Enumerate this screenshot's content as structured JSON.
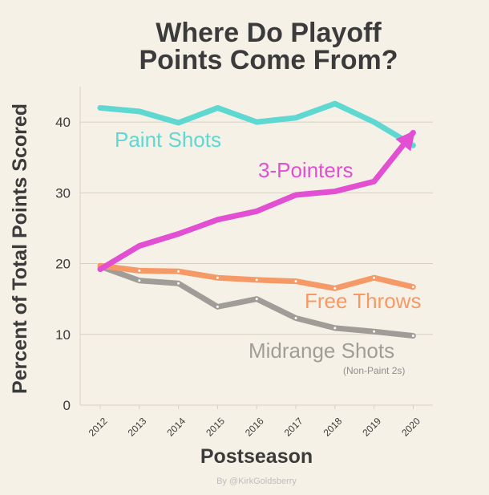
{
  "chart_data": {
    "type": "line",
    "title_lines": [
      "Where Do Playoff",
      "Points Come From?"
    ],
    "xlabel": "Postseason",
    "ylabel": "Percent of Total Points Scored",
    "x": [
      "2012",
      "2013",
      "2014",
      "2015",
      "2016",
      "2017",
      "2018",
      "2019",
      "2020"
    ],
    "ylim": [
      0,
      45
    ],
    "yticks": [
      "0",
      "10",
      "20",
      "30",
      "40"
    ],
    "grid": true,
    "series": [
      {
        "name": "Paint Shots",
        "color": "#5fd8d1",
        "values": [
          42,
          41.5,
          39.9,
          42,
          40,
          40.6,
          42.6,
          40,
          36.7
        ]
      },
      {
        "name": "3-Pointers",
        "color": "#e24fd2",
        "values": [
          19.2,
          22.5,
          24.2,
          26.2,
          27.4,
          29.7,
          30.2,
          31.6,
          38.5
        ]
      },
      {
        "name": "Free Throws",
        "color": "#f59a67",
        "values": [
          19.7,
          19,
          18.9,
          18,
          17.7,
          17.5,
          16.5,
          18,
          16.7
        ]
      },
      {
        "name": "Midrange Shots",
        "subtitle": "(Non-Paint 2s)",
        "color": "#a09d99",
        "values": [
          19.6,
          17.6,
          17.2,
          13.9,
          15,
          12.3,
          10.9,
          10.4,
          9.8
        ]
      }
    ],
    "credit": "By @KirkGoldsberry"
  }
}
